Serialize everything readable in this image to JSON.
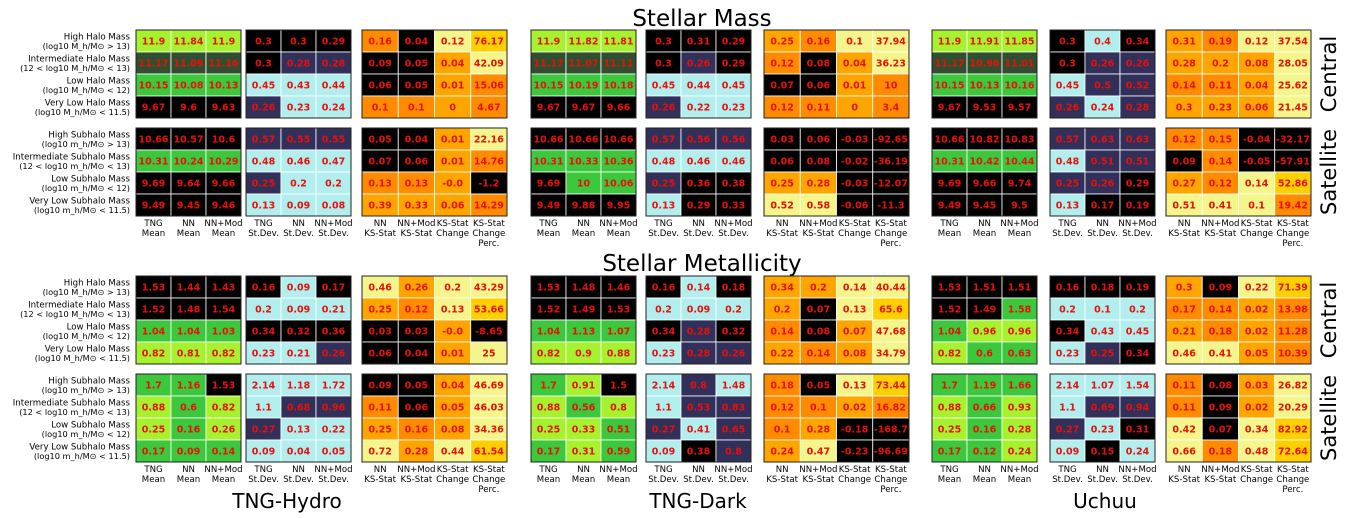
{
  "chart_data": {
    "type": "heatmap",
    "title_top": "Stellar Mass",
    "title_mid": "Stellar Metallicity",
    "sims": [
      "TNG-Hydro",
      "TNG-Dark",
      "Uchuu"
    ],
    "sections": [
      "Central",
      "Satellite"
    ],
    "row_labels": {
      "central": [
        [
          "High Halo Mass",
          "(log$_{10}$ $M_h/M_\\odot$ > 13)"
        ],
        [
          "Intermediate Halo Mass",
          "(12 < log$_{10}$ $M_h/M_\\odot$ < 13)"
        ],
        [
          "Low Halo Mass",
          "(log$_{10}$ $M_h/M_\\odot$ < 12)"
        ],
        [
          "Very Low Halo Mass",
          "(log$_{10}$ $M_h/M_\\odot$ < 11.5)"
        ]
      ],
      "satellite": [
        [
          "High Subhalo Mass",
          "(log$_{10}$ $m_h/M_\\odot$ > 13)"
        ],
        [
          "Intermediate Subhalo Mass",
          "(12 < log$_{10}$ $m_h/M_\\odot$ < 13)"
        ],
        [
          "Low Subhalo Mass",
          "(log$_{10}$ $m_h/M_\\odot$ < 12)"
        ],
        [
          "Very Low Subhalo Mass",
          "(log$_{10}$ $m_h/M_\\odot$ < 11.5)"
        ]
      ]
    },
    "column_groups": [
      [
        [
          "TNG",
          "Mean"
        ],
        [
          "NN",
          "Mean"
        ],
        [
          "NN+Mod",
          "Mean"
        ]
      ],
      [
        [
          "TNG",
          "St.Dev."
        ],
        [
          "NN",
          "St.Dev."
        ],
        [
          "NN+Mod",
          "St.Dev."
        ]
      ],
      [
        [
          "NN",
          "KS-Stat"
        ],
        [
          "NN+Mod",
          "KS-Stat"
        ],
        [
          "KS-Stat",
          "Change"
        ],
        [
          "KS-Stat",
          "Change",
          "Perc."
        ]
      ]
    ],
    "colors": {
      "black": "#000000",
      "dark_green": "#2f4f2f",
      "green": "#3cc83c",
      "lime": "#a6f22e",
      "pale_yellow": "#f4f58a",
      "dark_orange": "#ff8c00",
      "orange": "#ffa500",
      "gold": "#ffd000",
      "navy": "#30305a",
      "steel_blue": "#5b79b5",
      "sky_blue": "#87b5d4",
      "pale_cyan": "#b2eeee",
      "cell_text": "#e8100a"
    },
    "blocks": [
      {
        "prop": "Stellar Mass",
        "section": "Central",
        "sim": "TNG-Hydro",
        "mean": [
          [
            11.9,
            11.84,
            11.9
          ],
          [
            11.17,
            11.09,
            11.16
          ],
          [
            10.15,
            10.08,
            10.13
          ],
          [
            9.67,
            9.6,
            9.63
          ]
        ],
        "std": [
          [
            0.3,
            0.3,
            0.29
          ],
          [
            0.3,
            0.28,
            0.28
          ],
          [
            0.45,
            0.43,
            0.44
          ],
          [
            0.26,
            0.23,
            0.24
          ]
        ],
        "ks": [
          [
            0.16,
            0.04,
            0.12,
            76.17
          ],
          [
            0.09,
            0.05,
            0.04,
            42.09
          ],
          [
            0.06,
            0.05,
            0.01,
            15.06
          ],
          [
            0.1,
            0.1,
            0.0,
            4.67
          ]
        ]
      },
      {
        "prop": "Stellar Mass",
        "section": "Central",
        "sim": "TNG-Dark",
        "mean": [
          [
            11.9,
            11.82,
            11.81
          ],
          [
            11.17,
            11.07,
            11.11
          ],
          [
            10.15,
            10.19,
            10.18
          ],
          [
            9.67,
            9.67,
            9.66
          ]
        ],
        "std": [
          [
            0.3,
            0.31,
            0.29
          ],
          [
            0.3,
            0.26,
            0.29
          ],
          [
            0.45,
            0.44,
            0.45
          ],
          [
            0.26,
            0.22,
            0.23
          ]
        ],
        "ks": [
          [
            0.25,
            0.16,
            0.1,
            37.94
          ],
          [
            0.12,
            0.08,
            0.04,
            36.23
          ],
          [
            0.07,
            0.06,
            0.01,
            10.0
          ],
          [
            0.12,
            0.11,
            0.0,
            3.4
          ]
        ]
      },
      {
        "prop": "Stellar Mass",
        "section": "Central",
        "sim": "Uchuu",
        "mean": [
          [
            11.9,
            11.91,
            11.85
          ],
          [
            11.17,
            10.96,
            11.01
          ],
          [
            10.15,
            10.13,
            10.16
          ],
          [
            9.67,
            9.53,
            9.57
          ]
        ],
        "std": [
          [
            0.3,
            0.4,
            0.34
          ],
          [
            0.3,
            0.26,
            0.26
          ],
          [
            0.45,
            0.5,
            0.52
          ],
          [
            0.26,
            0.24,
            0.28
          ]
        ],
        "ks": [
          [
            0.31,
            0.19,
            0.12,
            37.54
          ],
          [
            0.28,
            0.2,
            0.08,
            28.05
          ],
          [
            0.14,
            0.11,
            0.04,
            25.62
          ],
          [
            0.3,
            0.23,
            0.06,
            21.45
          ]
        ]
      },
      {
        "prop": "Stellar Mass",
        "section": "Satellite",
        "sim": "TNG-Hydro",
        "mean": [
          [
            10.66,
            10.57,
            10.6
          ],
          [
            10.31,
            10.24,
            10.29
          ],
          [
            9.69,
            9.64,
            9.66
          ],
          [
            9.49,
            9.45,
            9.46
          ]
        ],
        "std": [
          [
            0.57,
            0.55,
            0.55
          ],
          [
            0.48,
            0.46,
            0.47
          ],
          [
            0.25,
            0.2,
            0.2
          ],
          [
            0.13,
            0.09,
            0.08
          ]
        ],
        "ks": [
          [
            0.05,
            0.04,
            0.01,
            22.16
          ],
          [
            0.07,
            0.06,
            0.01,
            14.76
          ],
          [
            0.13,
            0.13,
            -0.0,
            -1.2
          ],
          [
            0.39,
            0.33,
            0.06,
            14.29
          ]
        ]
      },
      {
        "prop": "Stellar Mass",
        "section": "Satellite",
        "sim": "TNG-Dark",
        "mean": [
          [
            10.66,
            10.66,
            10.66
          ],
          [
            10.31,
            10.33,
            10.36
          ],
          [
            9.69,
            10,
            10.06
          ],
          [
            9.49,
            9.88,
            9.95
          ]
        ],
        "std": [
          [
            0.57,
            0.56,
            0.56
          ],
          [
            0.48,
            0.46,
            0.46
          ],
          [
            0.25,
            0.36,
            0.38
          ],
          [
            0.13,
            0.29,
            0.33
          ]
        ],
        "ks": [
          [
            0.03,
            0.06,
            -0.03,
            -92.65
          ],
          [
            0.06,
            0.08,
            -0.02,
            -36.19
          ],
          [
            0.25,
            0.28,
            -0.03,
            -12.07
          ],
          [
            0.52,
            0.58,
            -0.06,
            -11.3
          ]
        ]
      },
      {
        "prop": "Stellar Mass",
        "section": "Satellite",
        "sim": "Uchuu",
        "mean": [
          [
            10.66,
            10.82,
            10.83
          ],
          [
            10.31,
            10.42,
            10.44
          ],
          [
            9.69,
            9.66,
            9.74
          ],
          [
            9.49,
            9.45,
            9.5
          ]
        ],
        "std": [
          [
            0.57,
            0.63,
            0.63
          ],
          [
            0.48,
            0.51,
            0.51
          ],
          [
            0.25,
            0.26,
            0.29
          ],
          [
            0.13,
            0.17,
            0.19
          ]
        ],
        "ks": [
          [
            0.12,
            0.15,
            -0.04,
            -32.17
          ],
          [
            0.09,
            0.14,
            -0.05,
            -57.91
          ],
          [
            0.27,
            0.12,
            0.14,
            52.86
          ],
          [
            0.51,
            0.41,
            0.1,
            19.42
          ]
        ]
      },
      {
        "prop": "Stellar Metallicity",
        "section": "Central",
        "sim": "TNG-Hydro",
        "mean": [
          [
            1.53,
            1.44,
            1.43
          ],
          [
            1.52,
            1.48,
            1.54
          ],
          [
            1.04,
            1.04,
            1.03
          ],
          [
            0.82,
            0.81,
            0.82
          ]
        ],
        "std": [
          [
            0.16,
            0.09,
            0.17
          ],
          [
            0.2,
            0.09,
            0.21
          ],
          [
            0.34,
            0.32,
            0.36
          ],
          [
            0.23,
            0.21,
            0.26
          ]
        ],
        "ks": [
          [
            0.46,
            0.26,
            0.2,
            43.29
          ],
          [
            0.25,
            0.12,
            0.13,
            53.66
          ],
          [
            0.03,
            0.03,
            -0.0,
            -8.65
          ],
          [
            0.06,
            0.04,
            0.01,
            25
          ]
        ]
      },
      {
        "prop": "Stellar Metallicity",
        "section": "Central",
        "sim": "TNG-Dark",
        "mean": [
          [
            1.53,
            1.48,
            1.46
          ],
          [
            1.52,
            1.49,
            1.53
          ],
          [
            1.04,
            1.13,
            1.07
          ],
          [
            0.82,
            0.9,
            0.88
          ]
        ],
        "std": [
          [
            0.16,
            0.14,
            0.18
          ],
          [
            0.2,
            0.09,
            0.2
          ],
          [
            0.34,
            0.28,
            0.32
          ],
          [
            0.23,
            0.28,
            0.26
          ]
        ],
        "ks": [
          [
            0.34,
            0.2,
            0.14,
            40.44
          ],
          [
            0.2,
            0.07,
            0.13,
            65.6
          ],
          [
            0.14,
            0.08,
            0.07,
            47.68
          ],
          [
            0.22,
            0.14,
            0.08,
            34.79
          ]
        ]
      },
      {
        "prop": "Stellar Metallicity",
        "section": "Central",
        "sim": "Uchuu",
        "mean": [
          [
            1.53,
            1.51,
            1.51
          ],
          [
            1.52,
            1.49,
            1.58
          ],
          [
            1.04,
            0.96,
            0.96
          ],
          [
            0.82,
            0.6,
            0.63
          ]
        ],
        "std": [
          [
            0.16,
            0.18,
            0.19
          ],
          [
            0.2,
            0.1,
            0.2
          ],
          [
            0.34,
            0.43,
            0.45
          ],
          [
            0.23,
            0.25,
            0.34
          ]
        ],
        "ks": [
          [
            0.3,
            0.09,
            0.22,
            71.39
          ],
          [
            0.17,
            0.14,
            0.02,
            13.98
          ],
          [
            0.21,
            0.18,
            0.02,
            11.28
          ],
          [
            0.46,
            0.41,
            0.05,
            10.39
          ]
        ]
      },
      {
        "prop": "Stellar Metallicity",
        "section": "Satellite",
        "sim": "TNG-Hydro",
        "mean": [
          [
            1.7,
            1.16,
            1.53
          ],
          [
            0.88,
            0.6,
            0.82
          ],
          [
            0.25,
            0.16,
            0.26
          ],
          [
            0.17,
            0.09,
            0.14
          ]
        ],
        "std": [
          [
            2.14,
            1.18,
            1.72
          ],
          [
            1.1,
            0.68,
            0.96
          ],
          [
            0.27,
            0.13,
            0.22
          ],
          [
            0.09,
            0.04,
            0.05
          ]
        ],
        "ks": [
          [
            0.09,
            0.05,
            0.04,
            46.69
          ],
          [
            0.11,
            0.06,
            0.05,
            46.03
          ],
          [
            0.25,
            0.16,
            0.08,
            34.36
          ],
          [
            0.72,
            0.28,
            0.44,
            61.54
          ]
        ]
      },
      {
        "prop": "Stellar Metallicity",
        "section": "Satellite",
        "sim": "TNG-Dark",
        "mean": [
          [
            1.7,
            0.91,
            1.5
          ],
          [
            0.88,
            0.56,
            0.8
          ],
          [
            0.25,
            0.33,
            0.51
          ],
          [
            0.17,
            0.31,
            0.59
          ]
        ],
        "std": [
          [
            2.14,
            0.8,
            1.48
          ],
          [
            1.1,
            0.53,
            0.83
          ],
          [
            0.27,
            0.41,
            0.65
          ],
          [
            0.09,
            0.38,
            0.8
          ]
        ],
        "ks": [
          [
            0.18,
            0.05,
            0.13,
            73.44
          ],
          [
            0.12,
            0.1,
            0.02,
            16.82
          ],
          [
            0.1,
            0.28,
            -0.18,
            -168.7
          ],
          [
            0.24,
            0.47,
            -0.23,
            -96.69
          ]
        ]
      },
      {
        "prop": "Stellar Metallicity",
        "section": "Satellite",
        "sim": "Uchuu",
        "mean": [
          [
            1.7,
            1.19,
            1.66
          ],
          [
            0.88,
            0.66,
            0.93
          ],
          [
            0.25,
            0.16,
            0.28
          ],
          [
            0.17,
            0.12,
            0.24
          ]
        ],
        "std": [
          [
            2.14,
            1.07,
            1.54
          ],
          [
            1.1,
            0.69,
            0.94
          ],
          [
            0.27,
            0.23,
            0.31
          ],
          [
            0.09,
            0.15,
            0.24
          ]
        ],
        "ks": [
          [
            0.11,
            0.08,
            0.03,
            26.82
          ],
          [
            0.11,
            0.09,
            0.02,
            20.29
          ],
          [
            0.42,
            0.07,
            0.34,
            82.92
          ],
          [
            0.66,
            0.18,
            0.48,
            72.64
          ]
        ]
      }
    ]
  }
}
